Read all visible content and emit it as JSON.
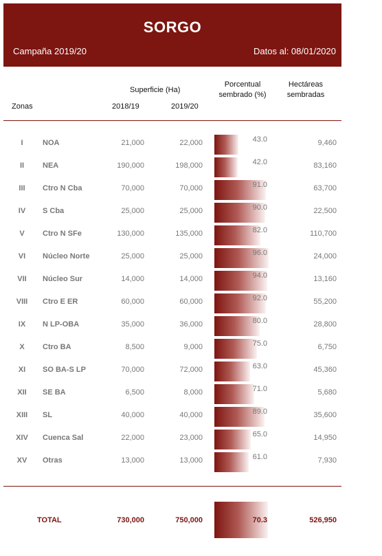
{
  "header": {
    "title": "SORGO",
    "campaign": "Campaña 2019/20",
    "date_info": "Datos al: 08/01/2020"
  },
  "columns": {
    "superficie": "Superficie (Ha)",
    "zonas": "Zonas",
    "year1": "2018/19",
    "year2": "2019/20",
    "porcentual": "Porcentual",
    "sembrado": "sembrado (%)",
    "hectareas": "Hectáreas",
    "sembradas": "sembradas"
  },
  "rows": [
    {
      "num": "I",
      "zone": "NOA",
      "sup_2018": "21,000",
      "sup_2019": "22,000",
      "pct_label": "43.0",
      "pct": 43.0,
      "ha": "9,460"
    },
    {
      "num": "II",
      "zone": "NEA",
      "sup_2018": "190,000",
      "sup_2019": "198,000",
      "pct_label": "42.0",
      "pct": 42.0,
      "ha": "83,160"
    },
    {
      "num": "III",
      "zone": "Ctro N Cba",
      "sup_2018": "70,000",
      "sup_2019": "70,000",
      "pct_label": "91.0",
      "pct": 91.0,
      "ha": "63,700"
    },
    {
      "num": "IV",
      "zone": "S Cba",
      "sup_2018": "25,000",
      "sup_2019": "25,000",
      "pct_label": "90.0",
      "pct": 90.0,
      "ha": "22,500"
    },
    {
      "num": "V",
      "zone": "Ctro N SFe",
      "sup_2018": "130,000",
      "sup_2019": "135,000",
      "pct_label": "82.0",
      "pct": 82.0,
      "ha": "110,700"
    },
    {
      "num": "VI",
      "zone": "Núcleo Norte",
      "sup_2018": "25,000",
      "sup_2019": "25,000",
      "pct_label": "96.0",
      "pct": 96.0,
      "ha": "24,000"
    },
    {
      "num": "VII",
      "zone": "Núcleo Sur",
      "sup_2018": "14,000",
      "sup_2019": "14,000",
      "pct_label": "94.0",
      "pct": 94.0,
      "ha": "13,160"
    },
    {
      "num": "VIII",
      "zone": "Ctro E ER",
      "sup_2018": "60,000",
      "sup_2019": "60,000",
      "pct_label": "92.0",
      "pct": 92.0,
      "ha": "55,200"
    },
    {
      "num": "IX",
      "zone": "N LP-OBA",
      "sup_2018": "35,000",
      "sup_2019": "36,000",
      "pct_label": "80.0",
      "pct": 80.0,
      "ha": "28,800"
    },
    {
      "num": "X",
      "zone": "Ctro BA",
      "sup_2018": "8,500",
      "sup_2019": "9,000",
      "pct_label": "75.0",
      "pct": 75.0,
      "ha": "6,750"
    },
    {
      "num": "XI",
      "zone": "SO BA-S LP",
      "sup_2018": "70,000",
      "sup_2019": "72,000",
      "pct_label": "63.0",
      "pct": 63.0,
      "ha": "45,360"
    },
    {
      "num": "XII",
      "zone": "SE BA",
      "sup_2018": "6,500",
      "sup_2019": "8,000",
      "pct_label": "71.0",
      "pct": 71.0,
      "ha": "5,680"
    },
    {
      "num": "XIII",
      "zone": "SL",
      "sup_2018": "40,000",
      "sup_2019": "40,000",
      "pct_label": "89.0",
      "pct": 89.0,
      "ha": "35,600"
    },
    {
      "num": "XIV",
      "zone": "Cuenca Sal",
      "sup_2018": "22,000",
      "sup_2019": "23,000",
      "pct_label": "65.0",
      "pct": 65.0,
      "ha": "14,950"
    },
    {
      "num": "XV",
      "zone": "Otras",
      "sup_2018": "13,000",
      "sup_2019": "13,000",
      "pct_label": "61.0",
      "pct": 61.0,
      "ha": "7,930"
    }
  ],
  "total": {
    "label": "TOTAL",
    "sup_2018": "730,000",
    "sup_2019": "750,000",
    "pct_label": "70.3",
    "pct": 70.3,
    "ha": "526,950"
  },
  "colors": {
    "accent": "#7d1510"
  }
}
